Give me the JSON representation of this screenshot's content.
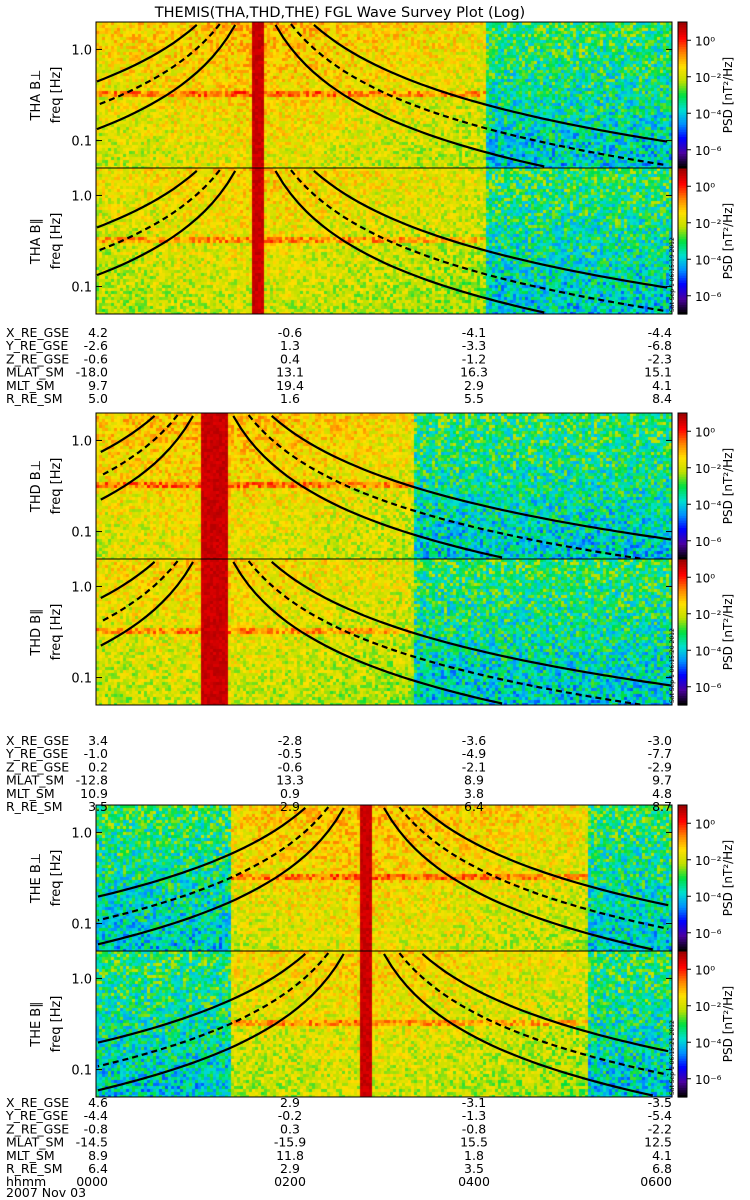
{
  "title": "THEMIS(THA,THD,THE) FGL Wave Survey Plot (Log)",
  "freq_axis": {
    "label": "freq [Hz]",
    "ticks": [
      "1.0",
      "0.1"
    ],
    "scale": "log",
    "range_hz": [
      0.05,
      2.0
    ]
  },
  "colorbar": {
    "label": "PSD [nT²/Hz]",
    "ticks": [
      "10⁰",
      "10⁻²",
      "10⁻⁴",
      "10⁻⁶"
    ],
    "range": [
      1e-07,
      10
    ],
    "scale": "log",
    "colormap": [
      "#000000",
      "#4b00a0",
      "#0000ff",
      "#0090ff",
      "#00e0d0",
      "#00e040",
      "#c0e000",
      "#ffe000",
      "#ff8000",
      "#ff0000",
      "#a00000"
    ]
  },
  "panels": [
    {
      "ylabel": "THA B⊥",
      "stamp": ""
    },
    {
      "ylabel": "THA B∥",
      "stamp": "Sat Sep 1 06:15:19 2012"
    },
    {
      "ylabel": "THD B⊥",
      "stamp": ""
    },
    {
      "ylabel": "THD B∥",
      "stamp": "Sat Sep 1 06:15:20 2012"
    },
    {
      "ylabel": "THE B⊥",
      "stamp": ""
    },
    {
      "ylabel": "THE B∥",
      "stamp": "Sat Sep 1 06:15:21 2012"
    }
  ],
  "ephemeris": [
    {
      "probe": "THA",
      "rows": [
        {
          "label": "X_RE_GSE",
          "values": [
            "4.2",
            "-0.6",
            "-4.1",
            "-4.4"
          ]
        },
        {
          "label": "Y_RE_GSE",
          "values": [
            "-2.6",
            "1.3",
            "-3.3",
            "-6.8"
          ]
        },
        {
          "label": "Z_RE_GSE",
          "values": [
            "-0.6",
            "0.4",
            "-1.2",
            "-2.3"
          ]
        },
        {
          "label": "MLAT_SM",
          "values": [
            "-18.0",
            "13.1",
            "16.3",
            "15.1"
          ]
        },
        {
          "label": "MLT_SM",
          "values": [
            "9.7",
            "19.4",
            "2.9",
            "4.1"
          ]
        },
        {
          "label": "R_RE_SM",
          "values": [
            "5.0",
            "1.6",
            "5.5",
            "8.4"
          ]
        }
      ]
    },
    {
      "probe": "THD",
      "rows": [
        {
          "label": "X_RE_GSE",
          "values": [
            "3.4",
            "-2.8",
            "-3.6",
            "-3.0"
          ]
        },
        {
          "label": "Y_RE_GSE",
          "values": [
            "-1.0",
            "-0.5",
            "-4.9",
            "-7.7"
          ]
        },
        {
          "label": "Z_RE_GSE",
          "values": [
            "0.2",
            "-0.6",
            "-2.1",
            "-2.9"
          ]
        },
        {
          "label": "MLAT_SM",
          "values": [
            "-12.8",
            "13.3",
            "8.9",
            "9.7"
          ]
        },
        {
          "label": "MLT_SM",
          "values": [
            "10.9",
            "0.9",
            "3.8",
            "4.8"
          ]
        },
        {
          "label": "R_RE_SM",
          "values": [
            "3.5",
            "2.9",
            "6.4",
            "8.7"
          ]
        }
      ]
    },
    {
      "probe": "THE",
      "rows": [
        {
          "label": "X_RE_GSE",
          "values": [
            "4.6",
            "2.9",
            "-3.1",
            "-3.5"
          ]
        },
        {
          "label": "Y_RE_GSE",
          "values": [
            "-4.4",
            "-0.2",
            "-1.3",
            "-5.4"
          ]
        },
        {
          "label": "Z_RE_GSE",
          "values": [
            "-0.8",
            "0.3",
            "-0.8",
            "-2.2"
          ]
        },
        {
          "label": "MLAT_SM",
          "values": [
            "-14.5",
            "-15.9",
            "15.5",
            "12.5"
          ]
        },
        {
          "label": "MLT_SM",
          "values": [
            "8.9",
            "11.8",
            "1.8",
            "4.1"
          ]
        },
        {
          "label": "R_RE_SM",
          "values": [
            "6.4",
            "2.9",
            "3.5",
            "6.8"
          ]
        },
        {
          "label": "hhmm",
          "values": [
            "0000",
            "0200",
            "0400",
            "0600"
          ]
        }
      ]
    }
  ],
  "date": "2007 Nov 03",
  "chart_data": {
    "type": "heatmap",
    "title": "THEMIS(THA,THD,THE) FGL Wave Survey Plot (Log)",
    "xlabel": "hhmm",
    "ylabel": "freq [Hz]",
    "x_ticks": [
      "0000",
      "0200",
      "0400",
      "0600"
    ],
    "xlim_hours": [
      0,
      6
    ],
    "ylim_hz": [
      0.05,
      2.0
    ],
    "yscale": "log",
    "zlabel": "PSD [nT²/Hz]",
    "zlim": [
      1e-07,
      10
    ],
    "zscale": "log",
    "series": [
      {
        "name": "THA B⊥",
        "perigee_band_hours": [
          1.6,
          1.72
        ]
      },
      {
        "name": "THA B∥",
        "perigee_band_hours": [
          1.6,
          1.72
        ]
      },
      {
        "name": "THD B⊥",
        "perigee_band_hours": [
          1.07,
          1.37
        ]
      },
      {
        "name": "THD B∥",
        "perigee_band_hours": [
          1.07,
          1.37
        ]
      },
      {
        "name": "THE B⊥",
        "perigee_band_hours": [
          2.73,
          2.85
        ]
      },
      {
        "name": "THE B∥",
        "perigee_band_hours": [
          2.73,
          2.85
        ]
      }
    ]
  }
}
